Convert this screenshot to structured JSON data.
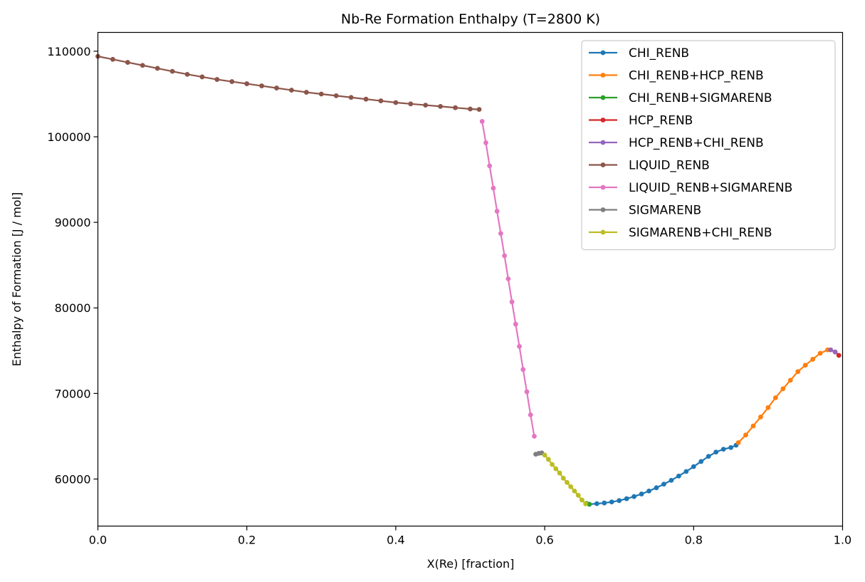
{
  "chart_data": {
    "type": "line",
    "title": "Nb-Re Formation Enthalpy (T=2800 K)",
    "xlabel": "X(Re) [fraction]",
    "ylabel": "Enthalpy of Formation [J / mol]",
    "xlim": [
      0.0,
      1.0
    ],
    "ylim": [
      54500,
      112200
    ],
    "xticks": [
      0.0,
      0.2,
      0.4,
      0.6,
      0.8,
      1.0
    ],
    "xtick_labels": [
      "0.0",
      "0.2",
      "0.4",
      "0.6",
      "0.8",
      "1.0"
    ],
    "yticks": [
      60000,
      70000,
      80000,
      90000,
      100000,
      110000
    ],
    "ytick_labels": [
      "60000",
      "70000",
      "80000",
      "90000",
      "100000",
      "110000"
    ],
    "grid": false,
    "legend_position": "top-right",
    "series": [
      {
        "name": "CHI_RENB",
        "color": "#1f77b4",
        "x": [
          0.66,
          0.67,
          0.68,
          0.69,
          0.7,
          0.71,
          0.72,
          0.73,
          0.74,
          0.75,
          0.76,
          0.77,
          0.78,
          0.79,
          0.8,
          0.81,
          0.82,
          0.83,
          0.84,
          0.85,
          0.857
        ],
        "y": [
          57050,
          57120,
          57200,
          57320,
          57480,
          57700,
          57950,
          58250,
          58600,
          58980,
          59400,
          59850,
          60350,
          60880,
          61450,
          62050,
          62650,
          63150,
          63480,
          63680,
          63950
        ]
      },
      {
        "name": "CHI_RENB+HCP_RENB",
        "color": "#ff7f0e",
        "x": [
          0.86,
          0.87,
          0.88,
          0.89,
          0.9,
          0.91,
          0.92,
          0.93,
          0.94,
          0.95,
          0.96,
          0.97,
          0.98
        ],
        "y": [
          64250,
          65150,
          66200,
          67250,
          68350,
          69500,
          70550,
          71550,
          72550,
          73300,
          74000,
          74700,
          75100
        ]
      },
      {
        "name": "CHI_RENB+SIGMARENB",
        "color": "#2ca02c",
        "x": [
          0.656,
          0.66
        ],
        "y": [
          57150,
          57050
        ]
      },
      {
        "name": "HCP_RENB",
        "color": "#d62728",
        "x": [
          0.99,
          0.995
        ],
        "y": [
          74850,
          74450
        ]
      },
      {
        "name": "HCP_RENB+CHI_RENB",
        "color": "#9467bd",
        "x": [
          0.984,
          0.99
        ],
        "y": [
          75100,
          74850
        ]
      },
      {
        "name": "LIQUID_RENB",
        "color": "#8c564b",
        "x": [
          0.0,
          0.02,
          0.04,
          0.06,
          0.08,
          0.1,
          0.12,
          0.14,
          0.16,
          0.18,
          0.2,
          0.22,
          0.24,
          0.26,
          0.28,
          0.3,
          0.32,
          0.34,
          0.36,
          0.38,
          0.4,
          0.42,
          0.44,
          0.46,
          0.48,
          0.5,
          0.512
        ],
        "y": [
          109400,
          109050,
          108700,
          108350,
          108000,
          107650,
          107300,
          107000,
          106700,
          106450,
          106200,
          105950,
          105700,
          105450,
          105200,
          105000,
          104800,
          104600,
          104400,
          104200,
          104000,
          103850,
          103700,
          103550,
          103400,
          103250,
          103200
        ]
      },
      {
        "name": "LIQUID_RENB+SIGMARENB",
        "color": "#e377c2",
        "x": [
          0.516,
          0.521,
          0.526,
          0.531,
          0.536,
          0.541,
          0.546,
          0.551,
          0.556,
          0.561,
          0.566,
          0.571,
          0.576,
          0.581,
          0.586
        ],
        "y": [
          101800,
          99300,
          96600,
          94000,
          91300,
          88700,
          86100,
          83400,
          80700,
          78100,
          75500,
          72800,
          70200,
          67500,
          65000
        ]
      },
      {
        "name": "SIGMARENB",
        "color": "#7f7f7f",
        "x": [
          0.588,
          0.592,
          0.596
        ],
        "y": [
          62900,
          63000,
          63050
        ]
      },
      {
        "name": "SIGMARENB+CHI_RENB",
        "color": "#bcbd22",
        "x": [
          0.6,
          0.605,
          0.61,
          0.615,
          0.62,
          0.625,
          0.63,
          0.635,
          0.64,
          0.645,
          0.65,
          0.655
        ],
        "y": [
          62800,
          62300,
          61700,
          61200,
          60700,
          60100,
          59600,
          59100,
          58600,
          58100,
          57550,
          57100
        ]
      }
    ]
  }
}
